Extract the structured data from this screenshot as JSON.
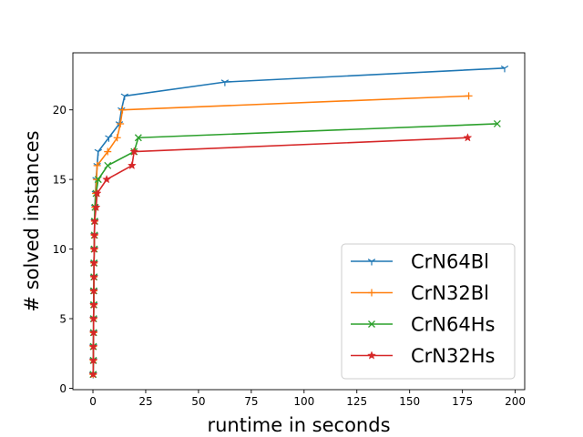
{
  "chart_data": {
    "type": "line",
    "xlabel": "runtime in seconds",
    "ylabel": "# solved instances",
    "xlim": [
      -9.5,
      204.5
    ],
    "ylim": [
      -0.1,
      24.1
    ],
    "xticks": [
      0,
      25,
      50,
      75,
      100,
      125,
      150,
      175,
      200
    ],
    "yticks": [
      0,
      5,
      10,
      15,
      20
    ],
    "grid": false,
    "legend_position": "lower-right",
    "series": [
      {
        "name": "CrN64Bl",
        "color": "#1f77b4",
        "marker": "tri_down",
        "points": [
          [
            0.1,
            1
          ],
          [
            0.2,
            2
          ],
          [
            0.2,
            3
          ],
          [
            0.3,
            4
          ],
          [
            0.3,
            5
          ],
          [
            0.4,
            6
          ],
          [
            0.4,
            7
          ],
          [
            0.5,
            8
          ],
          [
            0.5,
            9
          ],
          [
            0.6,
            10
          ],
          [
            0.7,
            11
          ],
          [
            0.8,
            12
          ],
          [
            0.9,
            13
          ],
          [
            1.2,
            14
          ],
          [
            1.5,
            15
          ],
          [
            2,
            16
          ],
          [
            2.5,
            17
          ],
          [
            7.5,
            18
          ],
          [
            12.5,
            19
          ],
          [
            13.5,
            20
          ],
          [
            15,
            21
          ],
          [
            62.5,
            22
          ],
          [
            195,
            23
          ]
        ]
      },
      {
        "name": "CrN32Bl",
        "color": "#ff7f0e",
        "marker": "plus",
        "points": [
          [
            0.1,
            1
          ],
          [
            0.2,
            2
          ],
          [
            0.2,
            3
          ],
          [
            0.3,
            4
          ],
          [
            0.3,
            5
          ],
          [
            0.4,
            6
          ],
          [
            0.4,
            7
          ],
          [
            0.5,
            8
          ],
          [
            0.5,
            9
          ],
          [
            0.6,
            10
          ],
          [
            0.7,
            11
          ],
          [
            0.8,
            12
          ],
          [
            1,
            13
          ],
          [
            1.3,
            14
          ],
          [
            1.7,
            15
          ],
          [
            2,
            16
          ],
          [
            7,
            17
          ],
          [
            11.5,
            18
          ],
          [
            13,
            19
          ],
          [
            14,
            20
          ],
          [
            178,
            21
          ]
        ]
      },
      {
        "name": "CrN64Hs",
        "color": "#2ca02c",
        "marker": "x",
        "points": [
          [
            0.1,
            1
          ],
          [
            0.2,
            2
          ],
          [
            0.2,
            3
          ],
          [
            0.3,
            4
          ],
          [
            0.3,
            5
          ],
          [
            0.4,
            6
          ],
          [
            0.4,
            7
          ],
          [
            0.5,
            8
          ],
          [
            0.5,
            9
          ],
          [
            0.6,
            10
          ],
          [
            0.7,
            11
          ],
          [
            0.8,
            12
          ],
          [
            1,
            13
          ],
          [
            1.5,
            14
          ],
          [
            2.5,
            15
          ],
          [
            7,
            16
          ],
          [
            19.5,
            17
          ],
          [
            21.5,
            18
          ],
          [
            191.5,
            19
          ]
        ]
      },
      {
        "name": "CrN32Hs",
        "color": "#d62728",
        "marker": "star",
        "points": [
          [
            0.1,
            1
          ],
          [
            0.2,
            2
          ],
          [
            0.2,
            3
          ],
          [
            0.3,
            4
          ],
          [
            0.3,
            5
          ],
          [
            0.4,
            6
          ],
          [
            0.4,
            7
          ],
          [
            0.5,
            8
          ],
          [
            0.5,
            9
          ],
          [
            0.6,
            10
          ],
          [
            0.7,
            11
          ],
          [
            0.8,
            12
          ],
          [
            1.5,
            13
          ],
          [
            2,
            14
          ],
          [
            6.5,
            15
          ],
          [
            18.5,
            16
          ],
          [
            19.5,
            17
          ],
          [
            177.5,
            18
          ]
        ]
      }
    ]
  }
}
